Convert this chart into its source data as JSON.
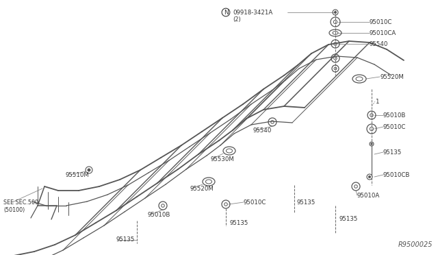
{
  "background_color": "#ffffff",
  "diagram_id": "R9500025",
  "frame_color": "#555555",
  "line_color": "#666666",
  "label_color": "#333333",
  "top_label_note": "N 09918-3421A",
  "top_label_sub": "(2)",
  "labels_right": [
    "95010C",
    "95010CA",
    "95540",
    "95520M",
    "1",
    "95010B",
    "95010C",
    "95135",
    "95010CB",
    "95010A",
    "95135"
  ],
  "labels_mid": [
    "95540",
    "95530M",
    "95520M",
    "95135",
    "95135",
    "95010C",
    "95135"
  ],
  "labels_left": [
    "95510M",
    "SEE SEC.500",
    "(50100)",
    "95010B",
    "95135"
  ]
}
